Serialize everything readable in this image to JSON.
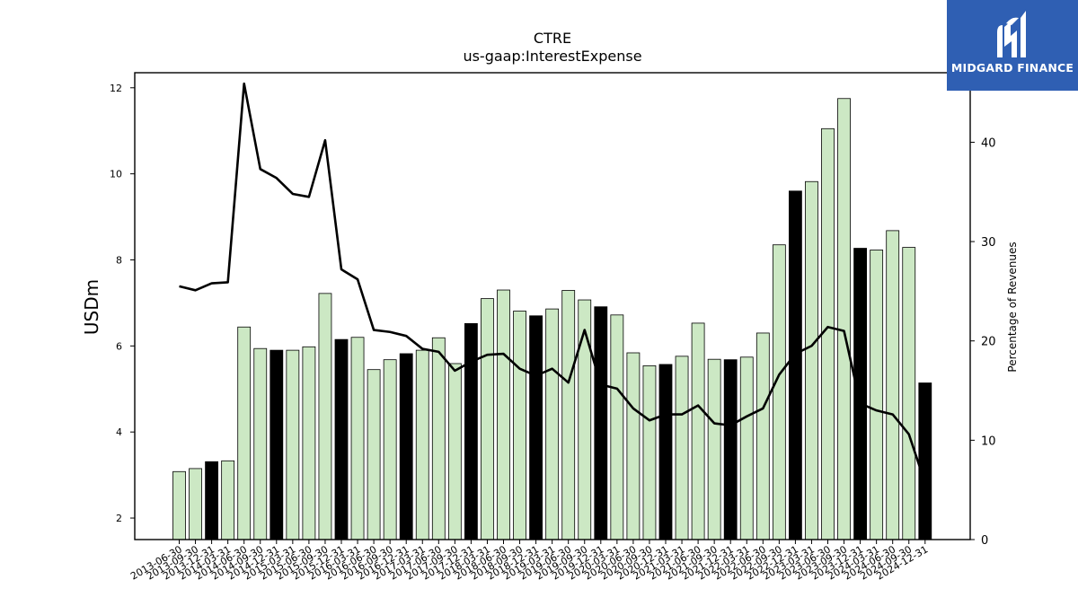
{
  "chart_data": {
    "type": "bar",
    "title": "CTRE",
    "subtitle": "us-gaap:InterestExpense",
    "ylabel": "USDm",
    "y2label": "Percentage of Revenues",
    "ylim": [
      1.5,
      12.35
    ],
    "y2lim": [
      0,
      47.0
    ],
    "yticks": [
      2,
      4,
      6,
      8,
      10,
      12
    ],
    "y2ticks": [
      0,
      10,
      20,
      30,
      40
    ],
    "categories": [
      "2013-06-30",
      "2013-09-30",
      "2013-12-31",
      "2014-03-31",
      "2014-06-30",
      "2014-09-30",
      "2014-12-31",
      "2015-03-31",
      "2015-06-30",
      "2015-09-30",
      "2015-12-31",
      "2016-03-31",
      "2016-06-30",
      "2016-09-30",
      "2016-12-31",
      "2017-03-31",
      "2017-06-30",
      "2017-09-30",
      "2017-12-31",
      "2018-03-31",
      "2018-06-30",
      "2018-09-30",
      "2018-12-31",
      "2019-03-31",
      "2019-06-30",
      "2019-09-30",
      "2019-12-31",
      "2020-03-31",
      "2020-06-30",
      "2020-09-30",
      "2020-12-31",
      "2021-03-31",
      "2021-06-30",
      "2021-09-30",
      "2021-12-31",
      "2022-03-31",
      "2022-06-30",
      "2022-09-30",
      "2022-12-31",
      "2023-03-31",
      "2023-06-30",
      "2023-09-30",
      "2023-12-31",
      "2024-03-31",
      "2024-06-30",
      "2024-09-30",
      "2024-12-31"
    ],
    "series": [
      {
        "kind": "bar",
        "axis": "left",
        "values": [
          3.08,
          3.15,
          3.31,
          3.33,
          6.44,
          5.94,
          5.9,
          5.9,
          5.98,
          7.22,
          6.15,
          6.2,
          5.45,
          5.68,
          5.82,
          5.9,
          6.19,
          5.59,
          6.52,
          7.1,
          7.3,
          6.81,
          6.7,
          6.86,
          7.29,
          7.07,
          6.91,
          6.72,
          5.84,
          5.54,
          5.57,
          5.76,
          6.53,
          5.69,
          5.68,
          5.74,
          6.3,
          8.35,
          9.6,
          9.82,
          11.05,
          11.75,
          8.27,
          8.23,
          8.68,
          8.29,
          5.14
        ],
        "highlight": [
          false,
          false,
          true,
          false,
          false,
          false,
          true,
          false,
          false,
          false,
          true,
          false,
          false,
          false,
          true,
          false,
          false,
          false,
          true,
          false,
          false,
          false,
          true,
          false,
          false,
          false,
          true,
          false,
          false,
          false,
          true,
          false,
          false,
          false,
          true,
          false,
          false,
          false,
          true,
          false,
          false,
          false,
          true,
          false,
          false,
          false,
          true
        ],
        "color": "#cce8c4",
        "highlight_color": "#000000"
      },
      {
        "kind": "line",
        "axis": "right",
        "values": [
          25.5,
          25.1,
          25.8,
          25.9,
          45.9,
          37.3,
          36.4,
          34.8,
          34.5,
          40.2,
          27.2,
          26.2,
          21.1,
          20.9,
          20.5,
          19.2,
          18.9,
          17.0,
          17.9,
          18.6,
          18.7,
          17.2,
          16.5,
          17.2,
          15.8,
          21.1,
          15.6,
          15.2,
          13.2,
          12.0,
          12.6,
          12.6,
          13.5,
          11.7,
          11.5,
          12.4,
          13.2,
          16.6,
          18.7,
          19.5,
          21.4,
          21.0,
          13.7,
          13.0,
          12.6,
          10.6,
          5.7
        ],
        "color": "#000000"
      }
    ]
  },
  "logo": {
    "text": "MIDGARD FINANCE",
    "icon": "midgard-logo-icon",
    "background": "#2f5fb3"
  }
}
